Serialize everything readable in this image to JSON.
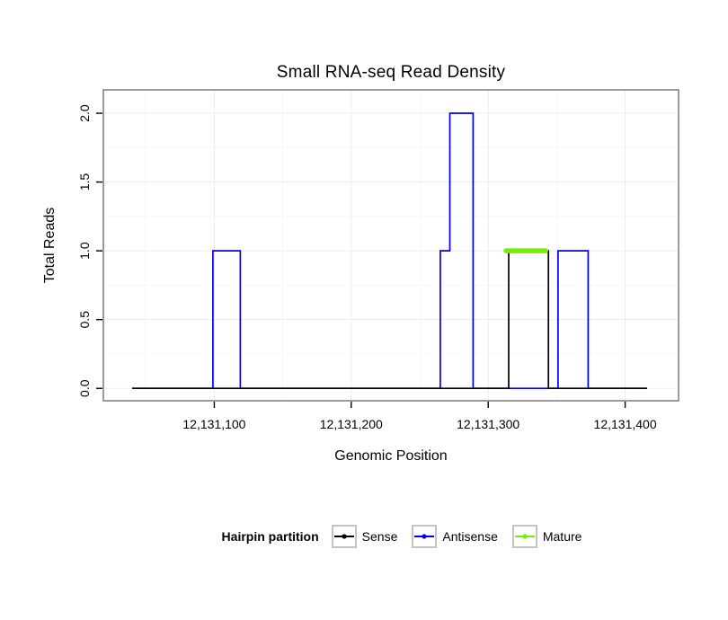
{
  "title": "Small RNA-seq Read Density",
  "axes": {
    "x_label": "Genomic Position",
    "y_label": "Total Reads"
  },
  "legend": {
    "title": "Hairpin partition",
    "entries": [
      {
        "label": "Sense",
        "color": "#000000"
      },
      {
        "label": "Antisense",
        "color": "#0000EE"
      },
      {
        "label": "Mature",
        "color": "#76EE00"
      }
    ]
  },
  "chart_data": {
    "type": "line",
    "subtype": "step-density",
    "title": "Small RNA-seq Read Density",
    "xlabel": "Genomic Position",
    "ylabel": "Total Reads",
    "xlim": [
      12131019,
      12131439
    ],
    "ylim": [
      -0.09,
      2.17
    ],
    "grid": {
      "major": true,
      "minor": true
    },
    "legend_position": "bottom",
    "x_ticks": [
      {
        "v": 12131100,
        "label": "12,131,100"
      },
      {
        "v": 12131200,
        "label": "12,131,200"
      },
      {
        "v": 12131300,
        "label": "12,131,300"
      },
      {
        "v": 12131400,
        "label": "12,131,400"
      }
    ],
    "y_ticks": [
      {
        "v": 0.0,
        "label": "0.0"
      },
      {
        "v": 0.5,
        "label": "0.5"
      },
      {
        "v": 1.0,
        "label": "1.0"
      },
      {
        "v": 1.5,
        "label": "1.5"
      },
      {
        "v": 2.0,
        "label": "2.0"
      }
    ],
    "series": [
      {
        "name": "Antisense",
        "color": "#0000EE",
        "width": 1.7,
        "points": [
          [
            12131040,
            0
          ],
          [
            12131099,
            0
          ],
          [
            12131099,
            1
          ],
          [
            12131119,
            1
          ],
          [
            12131119,
            0
          ],
          [
            12131265,
            0
          ],
          [
            12131265,
            1
          ],
          [
            12131272,
            1
          ],
          [
            12131272,
            2
          ],
          [
            12131289,
            2
          ],
          [
            12131289,
            0
          ],
          [
            12131351,
            0
          ],
          [
            12131351,
            1
          ],
          [
            12131373,
            1
          ],
          [
            12131373,
            0
          ],
          [
            12131416,
            0
          ]
        ]
      },
      {
        "name": "Sense",
        "color": "#000000",
        "width": 1.7,
        "points": [
          [
            12131040,
            0
          ],
          [
            12131315,
            0
          ],
          [
            12131315,
            1
          ],
          [
            12131344,
            1
          ],
          [
            12131344,
            0
          ],
          [
            12131416,
            0
          ]
        ]
      },
      {
        "name": "Mature",
        "color": "#76EE00",
        "width": 5.5,
        "linecap": "round",
        "points": [
          [
            12131313,
            1
          ],
          [
            12131342,
            1
          ]
        ]
      }
    ]
  }
}
